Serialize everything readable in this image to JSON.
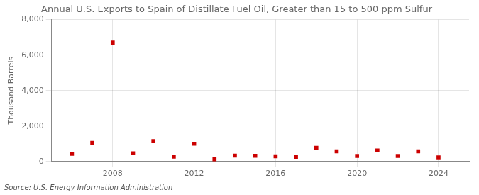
{
  "chart_data": {
    "type": "scatter",
    "title": "Annual U.S. Exports to Spain of Distillate Fuel Oil, Greater than 15 to 500 ppm Sulfur",
    "y_label": "Thousand Barrels",
    "annotations": [
      "Source: U.S. Energy Information Administration"
    ],
    "x": [
      2006,
      2007,
      2008,
      2009,
      2010,
      2011,
      2012,
      2013,
      2014,
      2015,
      2016,
      2017,
      2018,
      2019,
      2020,
      2021,
      2022,
      2023,
      2024
    ],
    "values": [
      430,
      1050,
      6700,
      460,
      1150,
      270,
      1000,
      120,
      330,
      320,
      290,
      260,
      770,
      570,
      310,
      620,
      310,
      570,
      230
    ],
    "color": "#cc0000",
    "marker": "square",
    "xlim": [
      2005.0,
      2025.5
    ],
    "xticks": [
      2008,
      2012,
      2016,
      2020,
      2024
    ],
    "ylim": [
      0,
      8000
    ],
    "yticks": [
      0,
      {
        "value": 2000,
        "label": "2,000"
      },
      {
        "value": 4000,
        "label": "4,000"
      },
      {
        "value": 6000,
        "label": "6,000"
      },
      {
        "value": 8000,
        "label": "8,000"
      }
    ],
    "grid": true
  }
}
